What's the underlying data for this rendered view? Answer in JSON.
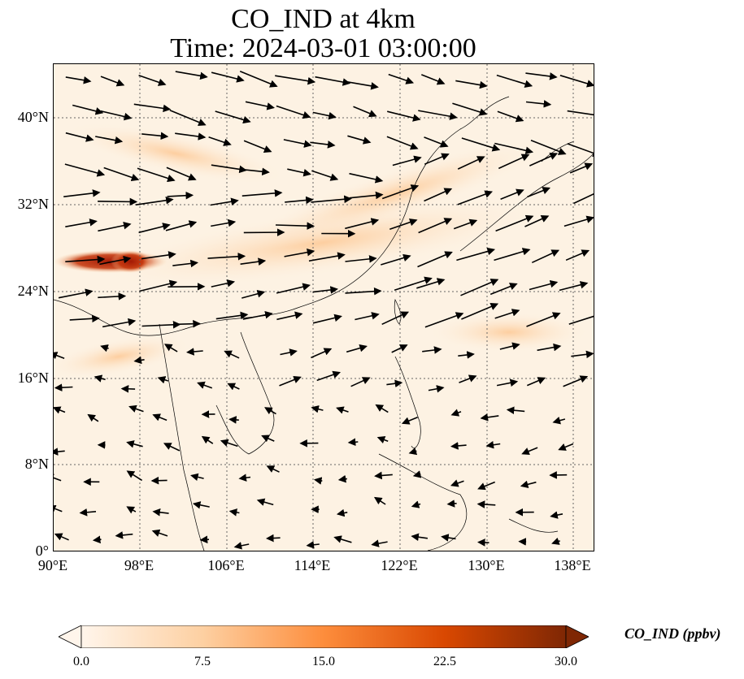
{
  "title": {
    "line1": "CO_IND at 4km",
    "line2": "Time: 2024-03-01 03:00:00"
  },
  "map": {
    "lon_range": [
      90,
      140
    ],
    "lat_range": [
      0,
      45
    ],
    "lat_ticks": [
      "40°N",
      "32°N",
      "24°N",
      "16°N",
      "8°N",
      "0°"
    ],
    "lon_ticks": [
      "90°E",
      "98°E",
      "106°E",
      "114°E",
      "122°E",
      "130°E",
      "138°E"
    ],
    "gridlines": "dotted",
    "field": "CO_IND concentration",
    "vectors": "wind arrows"
  },
  "colorbar": {
    "label": "CO_IND (ppbv)",
    "ticks": [
      "0.0",
      "7.5",
      "15.0",
      "22.5",
      "30.0"
    ],
    "min": 0.0,
    "max": 30.0,
    "colormap": [
      "#fff5eb",
      "#fdd0a2",
      "#fd8d3c",
      "#d94801",
      "#7f2704"
    ],
    "extend": "both"
  }
}
